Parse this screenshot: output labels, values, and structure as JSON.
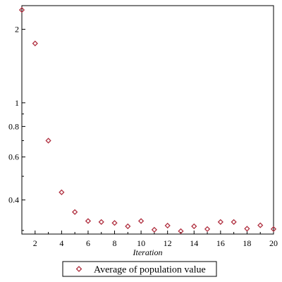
{
  "chart_data": {
    "type": "scatter",
    "title": "",
    "xlabel": "Iteration",
    "ylabel": "",
    "x_scale": "linear",
    "y_scale": "log",
    "xlim": [
      1,
      20
    ],
    "ylim": [
      0.29,
      2.5
    ],
    "x_ticks": [
      2,
      4,
      6,
      8,
      10,
      12,
      14,
      16,
      18,
      20
    ],
    "x_tick_labels": [
      "2",
      "4",
      "6",
      "8",
      "10",
      "12",
      "14",
      "16",
      "18",
      "20"
    ],
    "y_ticks": [
      0.4,
      0.6,
      0.8,
      1,
      2
    ],
    "y_tick_labels": [
      "0.4",
      "0.6",
      "0.8",
      "1",
      "2"
    ],
    "grid": false,
    "legend_position": "bottom",
    "series": [
      {
        "name": "Average of population value",
        "color": "#b03040",
        "marker": "diamond",
        "x": [
          1,
          2,
          3,
          4,
          5,
          6,
          7,
          8,
          9,
          10,
          11,
          12,
          13,
          14,
          15,
          16,
          17,
          18,
          19,
          20
        ],
        "y": [
          2.4,
          1.75,
          0.7,
          0.43,
          0.357,
          0.328,
          0.325,
          0.322,
          0.312,
          0.328,
          0.302,
          0.314,
          0.298,
          0.312,
          0.304,
          0.325,
          0.325,
          0.305,
          0.315,
          0.304
        ]
      }
    ]
  }
}
